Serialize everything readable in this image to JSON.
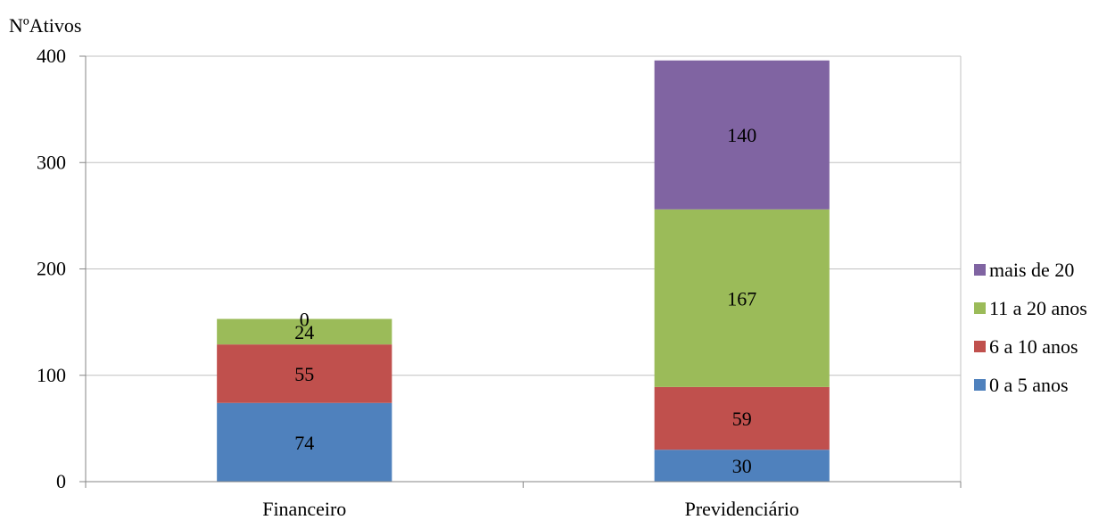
{
  "chart_data": {
    "type": "bar",
    "stacked": true,
    "ylabel": "NºAtivos",
    "xlabel": "",
    "title": "",
    "ylim": [
      0,
      400
    ],
    "yticks": [
      0,
      100,
      200,
      300,
      400
    ],
    "categories": [
      "Financeiro",
      "Previdenciário"
    ],
    "series": [
      {
        "name": "0 a 5 anos",
        "values": [
          74,
          30
        ],
        "color": "#4F81BD"
      },
      {
        "name": "6 a 10 anos",
        "values": [
          55,
          59
        ],
        "color": "#C0504D"
      },
      {
        "name": "11 a 20 anos",
        "values": [
          24,
          167
        ],
        "color": "#9BBB59"
      },
      {
        "name": "mais de 20",
        "values": [
          0,
          140
        ],
        "color": "#8064A2"
      }
    ],
    "data_labels": [
      [
        "74",
        "30"
      ],
      [
        "55",
        "59"
      ],
      [
        "24",
        "167"
      ],
      [
        "0",
        "140"
      ]
    ],
    "legend_order": [
      "mais de 20",
      "11 a 20 anos",
      "6 a 10 anos",
      "0 a 5 anos"
    ],
    "legend_position": "right",
    "grid": true,
    "gridline_color": "#C0C0C0",
    "axis_color": "#868686"
  }
}
